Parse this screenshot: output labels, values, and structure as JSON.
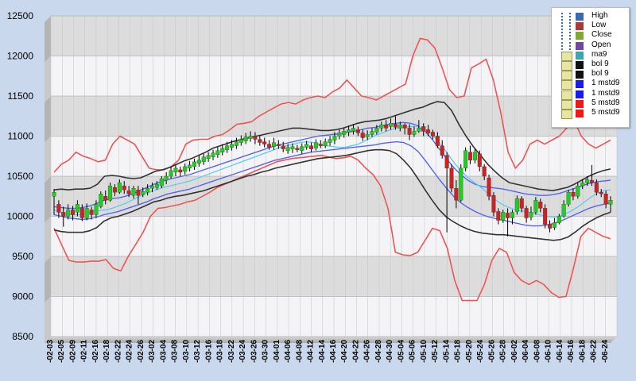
{
  "chart_data": {
    "type": "candlestick",
    "y_ticks": [
      "12500",
      "12000",
      "11500",
      "11000",
      "10500",
      "10000",
      "9500",
      "9000",
      "8500"
    ],
    "ylim": [
      8500,
      12500
    ],
    "x_labels": [
      "-02-03",
      "-02-05",
      "-02-09",
      "-02-11",
      "-02-16",
      "-02-18",
      "-02-22",
      "-02-24",
      "-02-26",
      "-03-02",
      "-03-04",
      "-03-08",
      "-03-10",
      "-03-12",
      "-03-16",
      "-03-18",
      "-03-22",
      "-03-24",
      "-03-26",
      "-03-30",
      "-04-01",
      "-04-06",
      "-04-08",
      "-04-12",
      "-04-14",
      "-04-16",
      "-04-20",
      "-04-22",
      "-04-26",
      "-04-28",
      "-04-30",
      "-05-04",
      "-05-06",
      "-05-10",
      "-05-12",
      "-05-14",
      "-05-18",
      "-05-20",
      "-05-24",
      "-05-26",
      "-05-28",
      "-06-02",
      "-06-04",
      "-06-08",
      "-06-10",
      "-06-14",
      "-06-16",
      "-06-18",
      "-06-22",
      "-06-24"
    ],
    "candles": [
      [
        10250,
        10300,
        10020,
        10340
      ],
      [
        10150,
        10050,
        9980,
        10200
      ],
      [
        10050,
        10000,
        9870,
        10120
      ],
      [
        10000,
        10080,
        9960,
        10150
      ],
      [
        10080,
        10020,
        9950,
        10130
      ],
      [
        10050,
        10150,
        10000,
        10200
      ],
      [
        10100,
        9980,
        9940,
        10150
      ],
      [
        9980,
        10100,
        9950,
        10160
      ],
      [
        10080,
        10020,
        9960,
        10120
      ],
      [
        10020,
        10150,
        9980,
        10200
      ],
      [
        10120,
        10280,
        10100,
        10310
      ],
      [
        10250,
        10200,
        10150,
        10320
      ],
      [
        10200,
        10380,
        10180,
        10420
      ],
      [
        10360,
        10300,
        10250,
        10400
      ],
      [
        10300,
        10420,
        10280,
        10460
      ],
      [
        10380,
        10330,
        10280,
        10440
      ],
      [
        10320,
        10280,
        10240,
        10380
      ],
      [
        10260,
        10350,
        10220,
        10380
      ],
      [
        10330,
        10260,
        10150,
        10380
      ],
      [
        10270,
        10310,
        10240,
        10360
      ],
      [
        10300,
        10350,
        10260,
        10400
      ],
      [
        10350,
        10380,
        10300,
        10420
      ],
      [
        10360,
        10400,
        10330,
        10440
      ],
      [
        10380,
        10470,
        10350,
        10500
      ],
      [
        10450,
        10500,
        10400,
        10550
      ],
      [
        10500,
        10570,
        10470,
        10620
      ],
      [
        10550,
        10600,
        10500,
        10640
      ],
      [
        10580,
        10550,
        10500,
        10620
      ],
      [
        10560,
        10620,
        10520,
        10660
      ],
      [
        10600,
        10640,
        10560,
        10690
      ],
      [
        10620,
        10680,
        10580,
        10720
      ],
      [
        10660,
        10700,
        10620,
        10760
      ],
      [
        10680,
        10740,
        10640,
        10780
      ],
      [
        10720,
        10760,
        10680,
        10800
      ],
      [
        10740,
        10790,
        10700,
        10830
      ],
      [
        10770,
        10820,
        10730,
        10860
      ],
      [
        10800,
        10850,
        10760,
        10900
      ],
      [
        10830,
        10880,
        10790,
        10930
      ],
      [
        10860,
        10900,
        10820,
        10950
      ],
      [
        10880,
        10930,
        10840,
        10980
      ],
      [
        10920,
        10960,
        10880,
        11010
      ],
      [
        10940,
        10990,
        10900,
        11040
      ],
      [
        10970,
        11000,
        10930,
        11060
      ],
      [
        11000,
        10960,
        10900,
        11050
      ],
      [
        10960,
        10920,
        10880,
        11010
      ],
      [
        10930,
        10900,
        10860,
        10980
      ],
      [
        10900,
        10860,
        10830,
        10950
      ],
      [
        10870,
        10920,
        10830,
        10980
      ],
      [
        10900,
        10880,
        10840,
        10950
      ],
      [
        10880,
        10840,
        10800,
        10930
      ],
      [
        10820,
        10860,
        10780,
        10900
      ],
      [
        10840,
        10870,
        10790,
        10910
      ],
      [
        10850,
        10830,
        10800,
        10890
      ],
      [
        10820,
        10870,
        10780,
        10910
      ],
      [
        10860,
        10900,
        10830,
        10940
      ],
      [
        10880,
        10840,
        10800,
        10920
      ],
      [
        10850,
        10920,
        10820,
        10960
      ],
      [
        10900,
        10880,
        10850,
        10950
      ],
      [
        10880,
        10930,
        10850,
        10970
      ],
      [
        10920,
        10960,
        10880,
        11000
      ],
      [
        10950,
        11000,
        10900,
        11050
      ],
      [
        11000,
        11040,
        10960,
        11080
      ],
      [
        11020,
        11060,
        10980,
        11100
      ],
      [
        11050,
        11080,
        11000,
        11130
      ],
      [
        11060,
        11100,
        11020,
        11150
      ],
      [
        11080,
        11040,
        11000,
        11120
      ],
      [
        11040,
        10980,
        10940,
        11080
      ],
      [
        10990,
        11020,
        10950,
        11070
      ],
      [
        11020,
        11060,
        10990,
        11100
      ],
      [
        11050,
        11100,
        11020,
        11140
      ],
      [
        11100,
        11140,
        11060,
        11180
      ],
      [
        11140,
        11100,
        11060,
        11200
      ],
      [
        11120,
        11160,
        11080,
        11220
      ],
      [
        11150,
        11110,
        11080,
        11250
      ],
      [
        11100,
        11140,
        11060,
        11180
      ],
      [
        11140,
        11100,
        11020,
        11160
      ],
      [
        11100,
        11020,
        10950,
        11150
      ],
      [
        11020,
        11060,
        10990,
        11120
      ],
      [
        11060,
        11100,
        11040,
        11200
      ],
      [
        11120,
        11060,
        11000,
        11160
      ],
      [
        11080,
        11040,
        11000,
        11140
      ],
      [
        11050,
        11000,
        10960,
        11080
      ],
      [
        11000,
        10880,
        10850,
        11050
      ],
      [
        10880,
        10760,
        10720,
        10950
      ],
      [
        10760,
        10600,
        9800,
        10800
      ],
      [
        10600,
        10350,
        10300,
        10650
      ],
      [
        10350,
        10200,
        10100,
        10450
      ],
      [
        10200,
        10600,
        10180,
        10650
      ],
      [
        10600,
        10820,
        10560,
        10860
      ],
      [
        10800,
        10700,
        10650,
        10880
      ],
      [
        10700,
        10800,
        10660,
        10840
      ],
      [
        10780,
        10620,
        10560,
        10820
      ],
      [
        10620,
        10500,
        10450,
        10650
      ],
      [
        10480,
        10250,
        10200,
        10520
      ],
      [
        10260,
        10050,
        10000,
        10300
      ],
      [
        10060,
        9950,
        9900,
        10100
      ],
      [
        9950,
        10050,
        9920,
        10080
      ],
      [
        10040,
        9980,
        9750,
        10100
      ],
      [
        9980,
        10050,
        9900,
        10080
      ],
      [
        10060,
        10220,
        10020,
        10260
      ],
      [
        10220,
        10100,
        10050,
        10250
      ],
      [
        10100,
        9980,
        9920,
        10130
      ],
      [
        9990,
        10050,
        9950,
        10120
      ],
      [
        10050,
        10200,
        10020,
        10240
      ],
      [
        10180,
        10100,
        10050,
        10220
      ],
      [
        10100,
        9900,
        9850,
        10150
      ],
      [
        9900,
        9850,
        9800,
        9950
      ],
      [
        9860,
        9920,
        9830,
        9980
      ],
      [
        9920,
        10000,
        9900,
        10030
      ],
      [
        10000,
        10150,
        9980,
        10200
      ],
      [
        10150,
        10300,
        10120,
        10330
      ],
      [
        10300,
        10250,
        10200,
        10350
      ],
      [
        10250,
        10380,
        10220,
        10420
      ],
      [
        10380,
        10420,
        10340,
        10460
      ],
      [
        10420,
        10460,
        10380,
        10500
      ],
      [
        10450,
        10420,
        10380,
        10640
      ],
      [
        10420,
        10300,
        10260,
        10460
      ],
      [
        10300,
        10280,
        10240,
        10340
      ],
      [
        10280,
        10150,
        10100,
        10320
      ],
      [
        10150,
        10200,
        10050,
        10250
      ]
    ],
    "indicators": {
      "ma9": [
        10080,
        10050,
        10030,
        10020,
        10020,
        10040,
        10060,
        10070,
        10080,
        10100,
        10130,
        10160,
        10200,
        10240,
        10280,
        10310,
        10340,
        10360,
        10380,
        10400,
        10420,
        10440,
        10470,
        10500,
        10530,
        10560,
        10590,
        10620,
        10650,
        10680,
        10710,
        10740,
        10770,
        10800,
        10830,
        10860,
        10880,
        10900,
        10920,
        10930,
        10920,
        10900,
        10880,
        10870,
        10860,
        10860,
        10880,
        10900,
        10940,
        10980,
        11020,
        11050,
        11080,
        11100,
        11110,
        11120,
        11120,
        11100,
        11050,
        10970,
        10870,
        10760,
        10650,
        10560,
        10480,
        10420,
        10360,
        10290,
        10220,
        10160,
        10120,
        10090,
        10070,
        10060,
        10040,
        10020,
        10000,
        9990,
        10000,
        10030,
        10070,
        10120,
        10180,
        10240,
        10290,
        10320,
        10330
      ],
      "bol9_upper": [
        10330,
        10340,
        10330,
        10340,
        10340,
        10350,
        10400,
        10500,
        10510,
        10500,
        10480,
        10470,
        10480,
        10520,
        10560,
        10580,
        10610,
        10650,
        10690,
        10720,
        10760,
        10800,
        10850,
        10880,
        10910,
        10940,
        10960,
        10980,
        11000,
        11020,
        11040,
        11060,
        11080,
        11100,
        11100,
        11090,
        11080,
        11070,
        11070,
        11080,
        11100,
        11130,
        11160,
        11180,
        11190,
        11200,
        11220,
        11250,
        11280,
        11310,
        11340,
        11360,
        11400,
        11430,
        11420,
        11320,
        11150,
        11000,
        10870,
        10760,
        10650,
        10560,
        10480,
        10420,
        10400,
        10380,
        10360,
        10340,
        10330,
        10320,
        10340,
        10360,
        10400,
        10450,
        10500,
        10540,
        10570,
        10590
      ],
      "bol9_lower": [
        9830,
        9810,
        9800,
        9800,
        9800,
        9820,
        9860,
        9940,
        9980,
        10000,
        10030,
        10060,
        10100,
        10140,
        10180,
        10200,
        10230,
        10250,
        10260,
        10280,
        10300,
        10320,
        10350,
        10380,
        10410,
        10440,
        10470,
        10500,
        10520,
        10550,
        10570,
        10600,
        10620,
        10640,
        10660,
        10680,
        10700,
        10720,
        10730,
        10740,
        10750,
        10760,
        10780,
        10800,
        10820,
        10830,
        10830,
        10820,
        10780,
        10700,
        10600,
        10470,
        10330,
        10200,
        10080,
        9990,
        9930,
        9880,
        9840,
        9810,
        9790,
        9780,
        9770,
        9770,
        9760,
        9750,
        9740,
        9730,
        9720,
        9710,
        9700,
        9710,
        9740,
        9800,
        9870,
        9930,
        9980,
        10020,
        10050
      ],
      "mstd1_upper": [
        10120,
        10110,
        10100,
        10100,
        10110,
        10130,
        10160,
        10200,
        10220,
        10230,
        10250,
        10280,
        10320,
        10360,
        10400,
        10430,
        10460,
        10480,
        10500,
        10520,
        10550,
        10580,
        10610,
        10640,
        10670,
        10700,
        10730,
        10760,
        10790,
        10820,
        10850,
        10880,
        10900,
        10920,
        10940,
        10960,
        10980,
        11000,
        11010,
        11020,
        11030,
        11050,
        11060,
        11080,
        11100,
        11110,
        11130,
        11150,
        11160,
        11170,
        11160,
        11130,
        11060,
        10960,
        10840,
        10720,
        10610,
        10520,
        10450,
        10400,
        10370,
        10360,
        10350,
        10340,
        10320,
        10300,
        10280,
        10270,
        10260,
        10260,
        10270,
        10290,
        10320,
        10350,
        10380,
        10410,
        10430,
        10440,
        10450
      ],
      "mstd1_lower": [
        10020,
        10000,
        9980,
        9970,
        9960,
        9970,
        9990,
        10020,
        10040,
        10060,
        10090,
        10120,
        10150,
        10180,
        10220,
        10250,
        10280,
        10300,
        10320,
        10340,
        10370,
        10400,
        10430,
        10460,
        10490,
        10520,
        10550,
        10580,
        10610,
        10640,
        10670,
        10700,
        10720,
        10740,
        10760,
        10780,
        10800,
        10810,
        10820,
        10830,
        10840,
        10850,
        10860,
        10870,
        10880,
        10890,
        10910,
        10920,
        10930,
        10920,
        10880,
        10810,
        10700,
        10580,
        10460,
        10350,
        10250,
        10170,
        10110,
        10060,
        10020,
        9990,
        9970,
        9950,
        9930,
        9910,
        9890,
        9880,
        9880,
        9890,
        9910,
        9940,
        9980,
        10020,
        10060,
        10100,
        10130,
        10150,
        10170
      ],
      "mstd5_upper": [
        10550,
        10650,
        10700,
        10800,
        10750,
        10720,
        10680,
        10700,
        10900,
        11000,
        10950,
        10900,
        10750,
        10600,
        10580,
        10580,
        10620,
        10700,
        10900,
        10950,
        10960,
        10960,
        11000,
        11020,
        11080,
        11150,
        11160,
        11180,
        11250,
        11300,
        11350,
        11400,
        11420,
        11400,
        11450,
        11480,
        11500,
        11480,
        11550,
        11600,
        11700,
        11600,
        11500,
        11480,
        11450,
        11500,
        11550,
        11600,
        11650,
        12000,
        12220,
        12200,
        12100,
        11850,
        11580,
        11480,
        11500,
        11850,
        11900,
        11960,
        11700,
        11300,
        10800,
        10600,
        10700,
        10900,
        10950,
        10900,
        10950,
        11000,
        11100,
        11200,
        11000,
        10900,
        10850,
        10900,
        10950
      ],
      "mstd5_lower": [
        9850,
        9650,
        9450,
        9430,
        9430,
        9440,
        9440,
        9460,
        9350,
        9320,
        9500,
        9650,
        9800,
        10000,
        10100,
        10110,
        10130,
        10150,
        10180,
        10200,
        10250,
        10300,
        10360,
        10400,
        10440,
        10480,
        10520,
        10560,
        10600,
        10640,
        10680,
        10700,
        10720,
        10730,
        10740,
        10750,
        10760,
        10740,
        10720,
        10730,
        10750,
        10700,
        10600,
        10520,
        10380,
        10100,
        9550,
        9520,
        9510,
        9550,
        9700,
        9850,
        9820,
        9600,
        9200,
        8950,
        8950,
        8950,
        9150,
        9450,
        9600,
        9550,
        9300,
        9200,
        9150,
        9200,
        9150,
        9050,
        8990,
        9000,
        9350,
        9750,
        9850,
        9800,
        9750,
        9720
      ]
    },
    "legend": [
      "High",
      "Low",
      "Close",
      "Open",
      "ma9",
      "bol 9",
      "bol 9",
      "1 mstd9",
      "1 mstd9",
      "5 mstd9",
      "5 mstd9"
    ],
    "colors": {
      "up_body": "#22cc22",
      "down_body": "#cc2222",
      "wick": "#000000",
      "ma9": "#66ccee",
      "bol9": "#333333",
      "mstd1": "#5566ee",
      "mstd5": "#ee5555",
      "legend_swatches": [
        "#3c6ab2",
        "#aa3a3a",
        "#7fa83a",
        "#6d4aa0",
        "#3aa6b8",
        "#111111",
        "#111111",
        "#1a1aee",
        "#1a1aee",
        "#ee1a1a",
        "#ee1a1a"
      ]
    }
  }
}
